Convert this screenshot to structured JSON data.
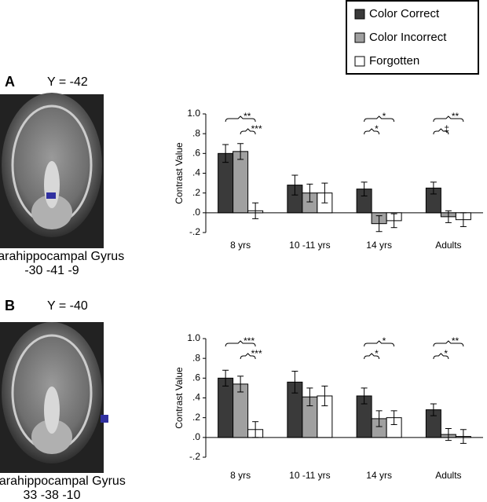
{
  "panels": [
    {
      "label": "A",
      "slice": "Y = -42",
      "region": "L Parahippocampal Gyrus",
      "coords": "-30 -41 -9"
    },
    {
      "label": "B",
      "slice": "Y = -40",
      "region": "R Parahippocampal Gyrus",
      "coords": "33 -38 -10"
    }
  ],
  "chart_data": [
    {
      "type": "bar",
      "y_label": "Contrast Value",
      "categories": [
        "8 yrs",
        "10 -11 yrs",
        "14 yrs",
        "Adults"
      ],
      "series": [
        {
          "name": "Color Correct",
          "color": "#3a3a3a",
          "values": [
            0.6,
            0.28,
            0.24,
            0.25
          ],
          "errors": [
            0.09,
            0.1,
            0.07,
            0.06
          ]
        },
        {
          "name": "Color Incorrect",
          "color": "#a0a0a0",
          "values": [
            0.62,
            0.2,
            -0.11,
            -0.04
          ],
          "errors": [
            0.08,
            0.09,
            0.08,
            0.06
          ]
        },
        {
          "name": "Forgotten",
          "color": "#ffffff",
          "values": [
            0.02,
            0.2,
            -0.08,
            -0.07
          ],
          "errors": [
            0.08,
            0.1,
            0.07,
            0.07
          ]
        }
      ],
      "ylim": [
        -0.2,
        1.0
      ],
      "yticks": [
        {
          "value": -0.2,
          "label": "-.2"
        },
        {
          "value": 0,
          "label": ".0"
        },
        {
          "value": 0.2,
          "label": ".2"
        },
        {
          "value": 0.4,
          "label": ".4"
        },
        {
          "value": 0.6,
          "label": ".6"
        },
        {
          "value": 0.8,
          "label": ".8"
        },
        {
          "value": 1,
          "label": "1.0"
        }
      ],
      "annotations": [
        {
          "category": 0,
          "between": [
            0,
            2
          ],
          "text": "**"
        },
        {
          "category": 0,
          "between": [
            1,
            2
          ],
          "text": "***"
        },
        {
          "category": 2,
          "between": [
            0,
            2
          ],
          "text": "*"
        },
        {
          "category": 2,
          "between": [
            0,
            1
          ],
          "text": "*"
        },
        {
          "category": 3,
          "between": [
            0,
            2
          ],
          "text": "**"
        },
        {
          "category": 3,
          "between": [
            0,
            1
          ],
          "text": "‡"
        }
      ]
    },
    {
      "type": "bar",
      "y_label": "Contrast Value",
      "categories": [
        "8 yrs",
        "10 -11 yrs",
        "14 yrs",
        "Adults"
      ],
      "series": [
        {
          "name": "Color Correct",
          "color": "#3a3a3a",
          "values": [
            0.6,
            0.56,
            0.42,
            0.28
          ],
          "errors": [
            0.08,
            0.11,
            0.08,
            0.06
          ]
        },
        {
          "name": "Color Incorrect",
          "color": "#a0a0a0",
          "values": [
            0.54,
            0.41,
            0.19,
            0.03
          ],
          "errors": [
            0.08,
            0.09,
            0.08,
            0.06
          ]
        },
        {
          "name": "Forgotten",
          "color": "#ffffff",
          "values": [
            0.08,
            0.42,
            0.2,
            0.01
          ],
          "errors": [
            0.08,
            0.1,
            0.07,
            0.07
          ]
        }
      ],
      "ylim": [
        -0.2,
        1.0
      ],
      "yticks": [
        {
          "value": -0.2,
          "label": "-.2"
        },
        {
          "value": 0,
          "label": ".0"
        },
        {
          "value": 0.2,
          "label": ".2"
        },
        {
          "value": 0.4,
          "label": ".4"
        },
        {
          "value": 0.6,
          "label": ".6"
        },
        {
          "value": 0.8,
          "label": ".8"
        },
        {
          "value": 1,
          "label": "1.0"
        }
      ],
      "annotations": [
        {
          "category": 0,
          "between": [
            0,
            2
          ],
          "text": "***"
        },
        {
          "category": 0,
          "between": [
            1,
            2
          ],
          "text": "***"
        },
        {
          "category": 2,
          "between": [
            0,
            2
          ],
          "text": "*"
        },
        {
          "category": 2,
          "between": [
            0,
            1
          ],
          "text": "*"
        },
        {
          "category": 3,
          "between": [
            0,
            2
          ],
          "text": "**"
        },
        {
          "category": 3,
          "between": [
            0,
            1
          ],
          "text": "*"
        }
      ]
    }
  ]
}
